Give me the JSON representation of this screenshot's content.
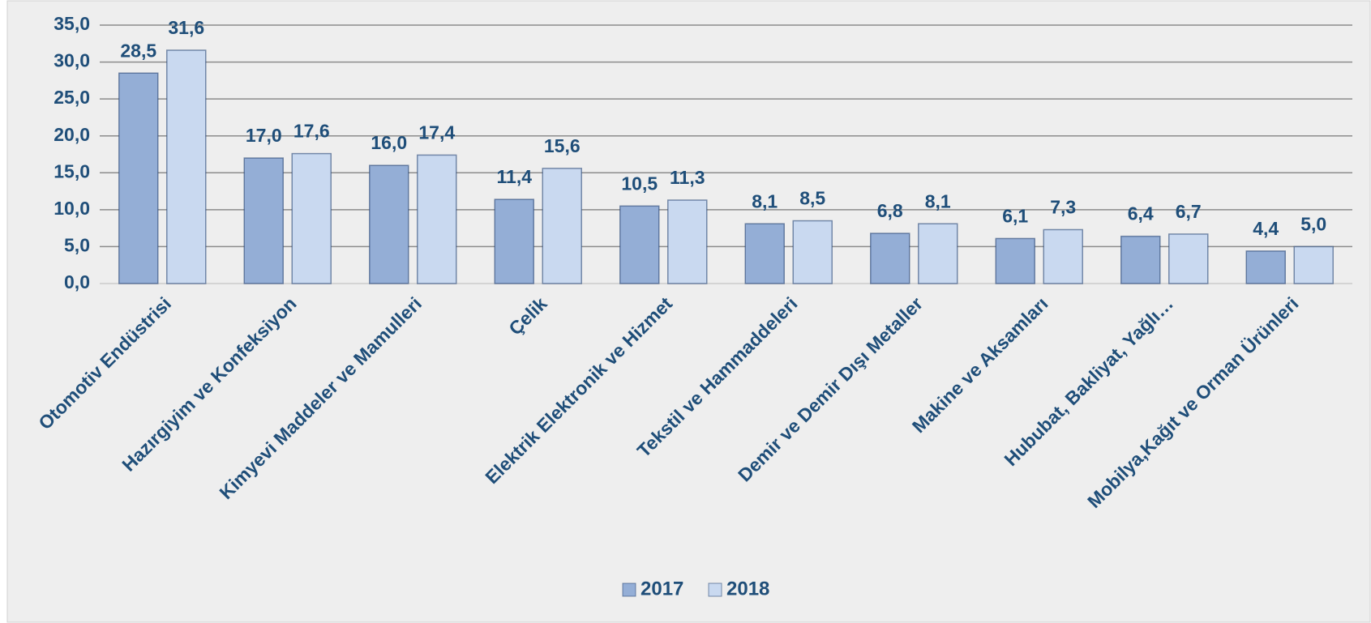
{
  "chart_data": {
    "type": "bar",
    "categories": [
      "Otomotiv Endüstrisi",
      "Hazırgiyim ve Konfeksiyon",
      "Kimyevi Maddeler ve Mamulleri",
      "Çelik",
      "Elektrik Elektronik ve Hizmet",
      "Tekstil ve Hammaddeleri",
      "Demir ve Demir Dışı Metaller",
      "Makine ve Aksamları",
      "Hububat, Bakliyat, Yağlı…",
      "Mobilya,Kağıt ve Orman Ürünleri"
    ],
    "series": [
      {
        "name": "2017",
        "color": "#94aed6",
        "values": [
          28.5,
          17.0,
          16.0,
          11.4,
          10.5,
          8.1,
          6.8,
          6.1,
          6.4,
          4.4
        ],
        "value_labels": [
          "28,5",
          "17,0",
          "16,0",
          "11,4",
          "10,5",
          "8,1",
          "6,8",
          "6,1",
          "6,4",
          "4,4"
        ]
      },
      {
        "name": "2018",
        "color": "#c9d9f0",
        "values": [
          31.6,
          17.6,
          17.4,
          15.6,
          11.3,
          8.5,
          8.1,
          7.3,
          6.7,
          5.0
        ],
        "value_labels": [
          "31,6",
          "17,6",
          "17,4",
          "15,6",
          "11,3",
          "8,5",
          "8,1",
          "7,3",
          "6,7",
          "5,0"
        ]
      }
    ],
    "ylim": [
      0,
      35
    ],
    "yticks": [
      {
        "value": 0,
        "label": "0,0"
      },
      {
        "value": 5,
        "label": "5,0"
      },
      {
        "value": 10,
        "label": "10,0"
      },
      {
        "value": 15,
        "label": "15,0"
      },
      {
        "value": 20,
        "label": "20,0"
      },
      {
        "value": 25,
        "label": "25,0"
      },
      {
        "value": 30,
        "label": "30,0"
      },
      {
        "value": 35,
        "label": "35,0"
      }
    ],
    "grid": true,
    "legend": "bottom"
  }
}
